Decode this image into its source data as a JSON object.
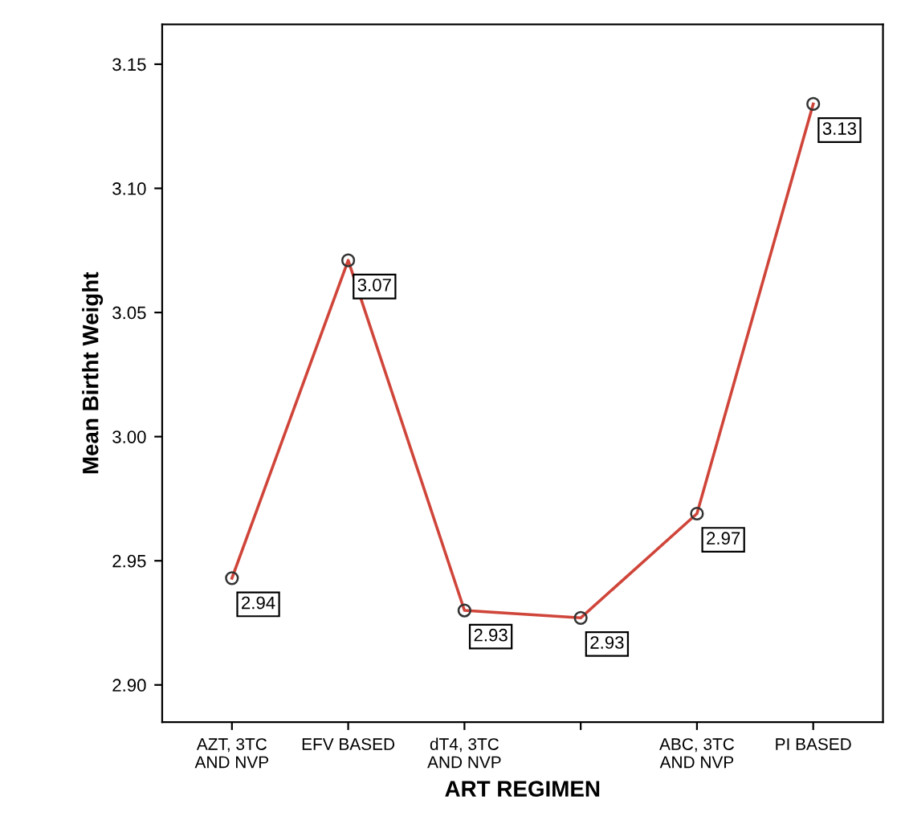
{
  "chart_data": {
    "type": "line",
    "xlabel": "ART REGIMEN",
    "ylabel": "Mean Birtht Weight",
    "categories": [
      "AZT, 3TC AND NVP",
      "EFV BASED",
      "dT4, 3TC AND NVP",
      null,
      "ABC, 3TC AND NVP",
      "PI BASED"
    ],
    "series": [
      {
        "color": "#d0453a",
        "values": [
          2.943,
          3.071,
          2.93,
          2.927,
          2.969,
          3.134
        ],
        "value_labels": [
          "2.94",
          "3.07",
          "2.93",
          "2.93",
          "2.97",
          "3.13"
        ]
      }
    ],
    "ylim": [
      2.885,
      3.166
    ],
    "yticks": [
      {
        "value": 2.9,
        "label": "2.90"
      },
      {
        "value": 2.95,
        "label": "2.95"
      },
      {
        "value": 3.0,
        "label": "3.00"
      },
      {
        "value": 3.05,
        "label": "3.05"
      },
      {
        "value": 3.1,
        "label": "3.10"
      },
      {
        "value": 3.15,
        "label": "3.15"
      }
    ],
    "marker": "circle",
    "line_style": "solid",
    "grid": false,
    "legend": false
  }
}
